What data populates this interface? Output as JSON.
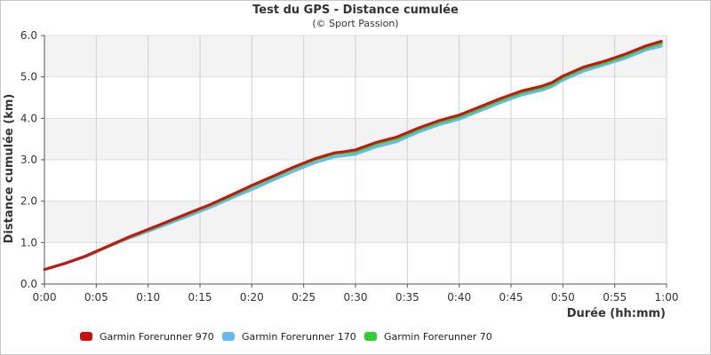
{
  "chart_data": {
    "type": "line",
    "title": "Test du GPS - Distance cumulée",
    "subtitle": "(© Sport Passion)",
    "xlabel": "Durée (hh:mm)",
    "ylabel": "Distance cumulée (km)",
    "xlim": [
      0,
      60
    ],
    "ylim": [
      0,
      6
    ],
    "x_ticks": [
      "0:00",
      "0:05",
      "0:10",
      "0:15",
      "0:20",
      "0:25",
      "0:30",
      "0:35",
      "0:40",
      "0:45",
      "0:50",
      "0:55",
      "1:00"
    ],
    "y_ticks": [
      "0.0",
      "1.0",
      "2.0",
      "3.0",
      "4.0",
      "5.0",
      "6.0"
    ],
    "grid": true,
    "legend_position": "bottom-left",
    "x": [
      0,
      2,
      4,
      6,
      8,
      10,
      12,
      14,
      16,
      18,
      20,
      22,
      24,
      26,
      28,
      29,
      30,
      32,
      34,
      36,
      38,
      40,
      42,
      44,
      46,
      48,
      49,
      50,
      52,
      54,
      56,
      58,
      59.5
    ],
    "series": [
      {
        "name": "Garmin Forerunner 970",
        "color": "#cc1111",
        "values": [
          0.35,
          0.5,
          0.68,
          0.9,
          1.12,
          1.32,
          1.52,
          1.72,
          1.92,
          2.15,
          2.38,
          2.6,
          2.82,
          3.02,
          3.17,
          3.2,
          3.24,
          3.42,
          3.55,
          3.76,
          3.94,
          4.08,
          4.28,
          4.48,
          4.66,
          4.78,
          4.87,
          5.02,
          5.24,
          5.38,
          5.55,
          5.75,
          5.86
        ]
      },
      {
        "name": "Garmin Forerunner 170",
        "color": "#66b8ee",
        "values": [
          0.35,
          0.49,
          0.66,
          0.88,
          1.09,
          1.27,
          1.46,
          1.65,
          1.85,
          2.07,
          2.28,
          2.5,
          2.72,
          2.92,
          3.07,
          3.1,
          3.13,
          3.31,
          3.44,
          3.66,
          3.84,
          3.98,
          4.18,
          4.38,
          4.56,
          4.68,
          4.77,
          4.92,
          5.14,
          5.29,
          5.45,
          5.65,
          5.74
        ]
      },
      {
        "name": "Garmin Forerunner 70",
        "color": "#33cc33",
        "values": [
          0.35,
          0.5,
          0.67,
          0.89,
          1.11,
          1.3,
          1.5,
          1.7,
          1.9,
          2.12,
          2.35,
          2.57,
          2.79,
          2.99,
          3.14,
          3.17,
          3.2,
          3.38,
          3.51,
          3.72,
          3.9,
          4.04,
          4.24,
          4.44,
          4.62,
          4.74,
          4.83,
          4.98,
          5.2,
          5.34,
          5.51,
          5.71,
          5.81
        ]
      }
    ]
  }
}
